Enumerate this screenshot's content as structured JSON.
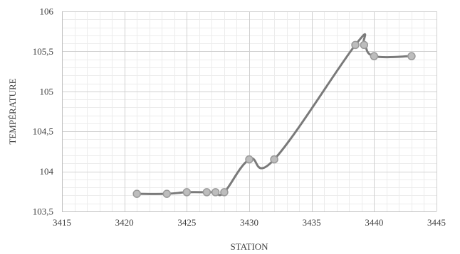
{
  "chart_data": {
    "type": "scatter",
    "title": "",
    "xlabel": "STATION",
    "ylabel": "TEMPÉRATURE",
    "xlim": [
      3415,
      3445
    ],
    "ylim": [
      103.5,
      106
    ],
    "x_major_step": 5,
    "y_major_step": 0.5,
    "x_minor_step": 1,
    "y_minor_step": 0.1,
    "grid": true,
    "smooth": true,
    "x_tick_labels": [
      "3415",
      "3420",
      "3425",
      "3430",
      "3435",
      "3440",
      "3445"
    ],
    "y_tick_labels": [
      "103,5",
      "104",
      "104,5",
      "105",
      "105,5",
      "106"
    ],
    "series": [
      {
        "x": [
          3421,
          3423.4,
          3425,
          3426.6,
          3427.3,
          3428,
          3430,
          3432,
          3438.5,
          3439.2,
          3440,
          3443
        ],
        "y": [
          103.72,
          103.72,
          103.74,
          103.74,
          103.74,
          103.74,
          104.15,
          104.15,
          105.58,
          105.58,
          105.44,
          105.44
        ],
        "color": "#7a7a7a",
        "marker_color": "#bdbdbd"
      }
    ]
  }
}
